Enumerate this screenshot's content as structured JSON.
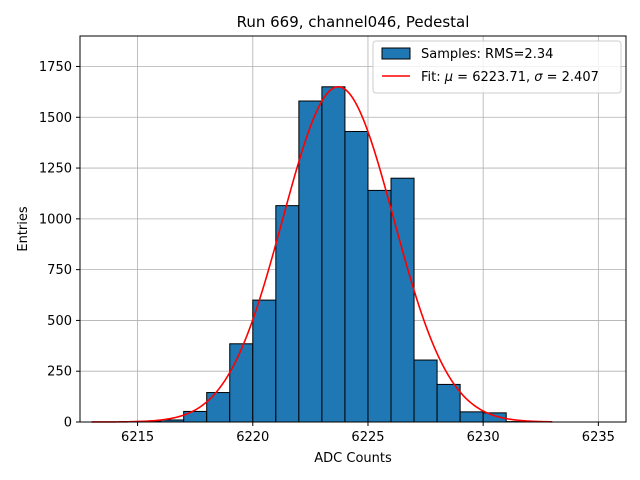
{
  "chart_data": {
    "type": "bar",
    "title": "Run 669, channel046, Pedestal",
    "xlabel": "ADC Counts",
    "ylabel": "Entries",
    "xlim": [
      6212.5,
      6236.2
    ],
    "ylim": [
      0,
      1900
    ],
    "xticks": [
      6215,
      6220,
      6225,
      6230,
      6235
    ],
    "xtick_labels": [
      "6215",
      "6220",
      "6225",
      "6230",
      "6235"
    ],
    "yticks": [
      0,
      250,
      500,
      750,
      1000,
      1250,
      1500,
      1750
    ],
    "ytick_labels": [
      "0",
      "250",
      "500",
      "750",
      "1000",
      "1250",
      "1500",
      "1750"
    ],
    "grid": true,
    "legend_position": "top-right",
    "histogram": {
      "name": "Samples: RMS=2.34",
      "color": "#1f77b4",
      "edge_color": "#000000",
      "bin_edges": [
        6213,
        6214,
        6215,
        6216,
        6217,
        6218,
        6219,
        6220,
        6221,
        6222,
        6223,
        6224,
        6225,
        6226,
        6227,
        6228,
        6229,
        6230,
        6231,
        6232,
        6233
      ],
      "counts": [
        0,
        0,
        3,
        10,
        52,
        145,
        385,
        600,
        1065,
        1580,
        1650,
        1430,
        1140,
        1200,
        305,
        185,
        50,
        45,
        2,
        0
      ]
    },
    "fit": {
      "name": "Fit: μ = 6223.71, σ = 2.407",
      "color": "#ff0000",
      "mu": 6223.71,
      "sigma": 2.407,
      "amplitude": 1650,
      "x_range": [
        6213,
        6233
      ]
    },
    "legend": [
      {
        "label": "Samples: RMS=2.34",
        "kind": "patch"
      },
      {
        "label_prefix": "Fit: ",
        "label_mu_sym": "μ",
        "label_mid": " = 6223.71, ",
        "label_sigma_sym": "σ",
        "label_suffix": " = 2.407",
        "kind": "line"
      }
    ]
  }
}
